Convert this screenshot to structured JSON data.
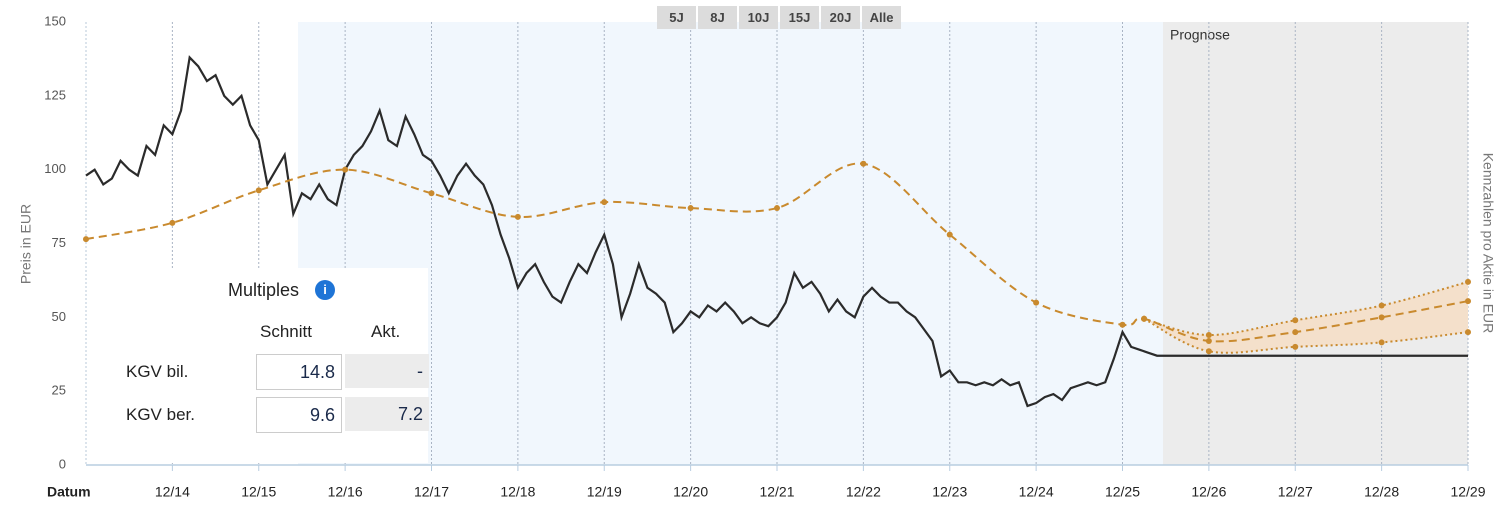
{
  "chart_data": {
    "type": "line",
    "y_label": "Preis in EUR",
    "y2_label": "Kennzahlen pro Aktie in EUR",
    "x_label": "Datum",
    "annotation": "Prognose",
    "xlim": [
      2013,
      2029
    ],
    "xticks": [
      {
        "value": 2014,
        "label": "12/14"
      },
      {
        "value": 2015,
        "label": "12/15"
      },
      {
        "value": 2016,
        "label": "12/16"
      },
      {
        "value": 2017,
        "label": "12/17"
      },
      {
        "value": 2018,
        "label": "12/18"
      },
      {
        "value": 2019,
        "label": "12/19"
      },
      {
        "value": 2020,
        "label": "12/20"
      },
      {
        "value": 2021,
        "label": "12/21"
      },
      {
        "value": 2022,
        "label": "12/22"
      },
      {
        "value": 2023,
        "label": "12/23"
      },
      {
        "value": 2024,
        "label": "12/24"
      },
      {
        "value": 2025,
        "label": "12/25"
      },
      {
        "value": 2026,
        "label": "12/26"
      },
      {
        "value": 2027,
        "label": "12/27"
      },
      {
        "value": 2028,
        "label": "12/28"
      },
      {
        "value": 2029,
        "label": "12/29"
      }
    ],
    "ylim": [
      0,
      150
    ],
    "yticks": [
      0,
      25,
      50,
      75,
      100,
      125,
      150
    ],
    "grid": true,
    "band": {
      "series": [
        2,
        3
      ],
      "color": "#f4e0cb"
    },
    "series": [
      {
        "color": "#2b2b2b",
        "style": "solid",
        "dots": false,
        "x": [
          2013,
          2013.1,
          2013.2,
          2013.3,
          2013.4,
          2013.5,
          2013.6,
          2013.7,
          2013.8,
          2013.9,
          2014,
          2014.1,
          2014.2,
          2014.3,
          2014.4,
          2014.5,
          2014.6,
          2014.7,
          2014.8,
          2014.9,
          2015,
          2015.1,
          2015.2,
          2015.3,
          2015.4,
          2015.5,
          2015.6,
          2015.7,
          2015.8,
          2015.9,
          2016,
          2016.1,
          2016.2,
          2016.3,
          2016.4,
          2016.5,
          2016.6,
          2016.7,
          2016.8,
          2016.9,
          2017,
          2017.1,
          2017.2,
          2017.3,
          2017.4,
          2017.5,
          2017.6,
          2017.7,
          2017.8,
          2017.9,
          2018,
          2018.1,
          2018.2,
          2018.3,
          2018.4,
          2018.5,
          2018.6,
          2018.7,
          2018.8,
          2018.9,
          2019,
          2019.1,
          2019.2,
          2019.3,
          2019.4,
          2019.5,
          2019.6,
          2019.7,
          2019.8,
          2019.9,
          2020,
          2020.1,
          2020.2,
          2020.3,
          2020.4,
          2020.5,
          2020.6,
          2020.7,
          2020.8,
          2020.9,
          2021,
          2021.1,
          2021.2,
          2021.3,
          2021.4,
          2021.5,
          2021.6,
          2021.7,
          2021.8,
          2021.9,
          2022,
          2022.1,
          2022.2,
          2022.3,
          2022.4,
          2022.5,
          2022.6,
          2022.7,
          2022.8,
          2022.9,
          2023,
          2023.1,
          2023.2,
          2023.3,
          2023.4,
          2023.5,
          2023.6,
          2023.7,
          2023.8,
          2023.9,
          2024,
          2024.1,
          2024.2,
          2024.3,
          2024.4,
          2024.5,
          2024.6,
          2024.7,
          2024.8,
          2024.9,
          2025,
          2025.1,
          2025.2,
          2025.3,
          2025.4,
          2025.47,
          2029
        ],
        "values": [
          98,
          100,
          95,
          97,
          103,
          100,
          98,
          108,
          105,
          115,
          112,
          120,
          138,
          135,
          130,
          132,
          125,
          122,
          125,
          115,
          110,
          95,
          100,
          105,
          85,
          92,
          90,
          95,
          90,
          88,
          100,
          105,
          108,
          113,
          120,
          110,
          108,
          118,
          112,
          105,
          103,
          98,
          92,
          98,
          102,
          98,
          95,
          88,
          78,
          70,
          60,
          65,
          68,
          62,
          57,
          55,
          62,
          68,
          65,
          72,
          78,
          68,
          50,
          58,
          68,
          60,
          58,
          55,
          45,
          48,
          52,
          50,
          54,
          52,
          55,
          52,
          48,
          50,
          48,
          47,
          50,
          55,
          65,
          60,
          62,
          58,
          52,
          56,
          52,
          50,
          57,
          60,
          57,
          55,
          55,
          52,
          50,
          46,
          42,
          30,
          32,
          28,
          28,
          27,
          28,
          27,
          29,
          27,
          28,
          20,
          21,
          23,
          24,
          22,
          26,
          27,
          28,
          27,
          28,
          36,
          45,
          40,
          39,
          38,
          37,
          37,
          37
        ]
      },
      {
        "color": "#c98a2e",
        "style": "dashed",
        "dots": true,
        "x": [
          2013,
          2014,
          2015,
          2016,
          2017,
          2018,
          2019,
          2020,
          2021,
          2022,
          2023,
          2024,
          2025,
          2025.25,
          2026,
          2027,
          2028,
          2029
        ],
        "values": [
          76.5,
          82,
          93,
          100,
          92,
          84,
          89,
          87,
          87,
          102,
          78,
          55,
          47.5,
          49.5,
          42,
          45,
          50,
          55.5
        ]
      },
      {
        "color": "#c98a2e",
        "style": "dotted",
        "dots": true,
        "x": [
          2025.25,
          2026,
          2027,
          2028,
          2029
        ],
        "values": [
          49.5,
          44,
          49,
          54,
          62
        ]
      },
      {
        "color": "#c98a2e",
        "style": "dotted",
        "dots": true,
        "x": [
          2025.25,
          2026,
          2027,
          2028,
          2029
        ],
        "values": [
          49.5,
          38.5,
          40,
          41.5,
          45
        ]
      }
    ]
  },
  "range_buttons": [
    "5J",
    "8J",
    "10J",
    "15J",
    "20J",
    "Alle"
  ],
  "multiples": {
    "title": "Multiples",
    "columns": [
      "Schnitt",
      "Akt."
    ],
    "rows": [
      {
        "label": "KGV bil.",
        "cells": [
          "14.8",
          "-"
        ]
      },
      {
        "label": "KGV ber.",
        "cells": [
          "9.6",
          "7.2"
        ]
      }
    ]
  }
}
